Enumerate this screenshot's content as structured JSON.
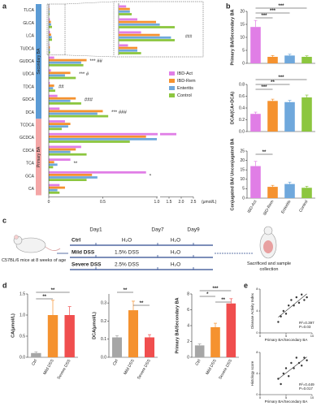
{
  "panel_labels": [
    "a",
    "b",
    "c",
    "d",
    "e"
  ],
  "chart_data": [
    {
      "type": "hbar",
      "categories": [
        "TLCA",
        "GLCA",
        "LCA",
        "TUDCA",
        "GUDCA",
        "UDCA",
        "TDCA",
        "GDCA",
        "DCA",
        "TCDCA",
        "GCDCA",
        "CDCA",
        "TCA",
        "GCA",
        "CA"
      ],
      "groups": [
        {
          "label": "Secondary BA",
          "color": "#5b9bd5"
        },
        {
          "label": "Primary BA",
          "color": "#f4a6a6"
        }
      ],
      "series": [
        {
          "name": "IBD-Act",
          "color": "#e07ee6",
          "values": [
            0.004,
            0.01,
            0.012,
            0.005,
            0.05,
            0.02,
            0.01,
            0.08,
            0.1,
            0.15,
            1.8,
            0.3,
            0.2,
            0.9,
            0.1
          ]
        },
        {
          "name": "IBD-Rem",
          "color": "#f5922f",
          "values": [
            0.006,
            0.02,
            0.022,
            0.01,
            0.35,
            0.2,
            0.05,
            0.25,
            0.5,
            0.2,
            0.9,
            0.25,
            0.05,
            0.4,
            0.15
          ]
        },
        {
          "name": "Enteritis",
          "color": "#6fa8dc",
          "values": [
            0.006,
            0.022,
            0.028,
            0.01,
            0.3,
            0.15,
            0.04,
            0.2,
            0.45,
            0.18,
            1.0,
            0.2,
            0.08,
            0.45,
            0.08
          ]
        },
        {
          "name": "Control",
          "color": "#8cc63f",
          "values": [
            0.007,
            0.03,
            0.03,
            0.012,
            0.32,
            0.25,
            0.06,
            0.3,
            0.55,
            0.12,
            0.75,
            0.35,
            0.04,
            0.35,
            0.1
          ]
        }
      ],
      "xlim": [
        0,
        2.5
      ],
      "axis_break": 1.0,
      "xticks": [
        0,
        0.5,
        {
          "value": 1,
          "label": "1.0"
        },
        1.5,
        {
          "value": 2,
          "label": "2.0"
        },
        2.5
      ],
      "xlabel": "(μmol/L)",
      "annotations": [
        "###",
        "*** ##",
        "*** #",
        "##",
        "###",
        "*** ###",
        "**",
        "*"
      ]
    },
    {
      "type": "bar",
      "ylabel": "Primary BA/Secondary BA",
      "values": [
        14,
        2.5,
        3,
        2.5
      ],
      "errors": [
        2.5,
        0.5,
        0.5,
        0.4
      ],
      "colors": [
        "#e07ee6",
        "#f5922f",
        "#6fa8dc",
        "#8cc63f"
      ],
      "ylim": [
        0,
        20
      ],
      "yticks": [
        0,
        5,
        10,
        15,
        20
      ],
      "annotations": [
        "***",
        "***",
        "***"
      ]
    },
    {
      "type": "bar",
      "ylabel": "DCA/(CA+DCA)",
      "values": [
        0.3,
        0.52,
        0.5,
        0.58
      ],
      "errors": [
        0.03,
        0.03,
        0.03,
        0.04
      ],
      "colors": [
        "#e07ee6",
        "#f5922f",
        "#6fa8dc",
        "#8cc63f"
      ],
      "ylim": [
        0,
        0.8
      ],
      "yticks": [
        {
          "value": 0,
          "label": "0.0"
        },
        0.2,
        0.4,
        0.6,
        0.8
      ],
      "annotations": [
        "***",
        "**",
        "***"
      ]
    },
    {
      "type": "bar",
      "ylabel": "Conjugated BA/ Unconjugated BA",
      "categories": [
        "IBD-Act",
        "IBD-Rem",
        "Enteritis",
        "Control"
      ],
      "values": [
        17,
        6,
        7.5,
        5.5
      ],
      "errors": [
        2.5,
        0.8,
        1,
        0.8
      ],
      "colors": [
        "#e07ee6",
        "#f5922f",
        "#6fa8dc",
        "#8cc63f"
      ],
      "ylim": [
        0,
        25
      ],
      "yticks": [
        0,
        5,
        10,
        15,
        20,
        25
      ],
      "annotations": [
        "**"
      ]
    },
    {
      "type": "bar",
      "ylabel": "CA(μmol/L)",
      "categories": [
        "Ctrl",
        "Mild DSS",
        "Severe DSS"
      ],
      "values": [
        0.1,
        1.0,
        1.0
      ],
      "errors": [
        0.03,
        0.35,
        0.2
      ],
      "colors": [
        "#a6a6a6",
        "#f5922f",
        "#f04e4e"
      ],
      "ylim": [
        0,
        1.5
      ],
      "yticks": [
        {
          "value": 0,
          "label": "0.0"
        },
        0.5,
        {
          "value": 1,
          "label": "1.0"
        },
        1.5
      ],
      "annotations": [
        "**",
        "**"
      ]
    },
    {
      "type": "bar",
      "ylabel": "DCA(μmol/L)",
      "categories": [
        "Ctrl",
        "Mild DSS",
        "Severe DSS"
      ],
      "values": [
        0.11,
        0.26,
        0.11
      ],
      "errors": [
        0.01,
        0.05,
        0.015
      ],
      "colors": [
        "#a6a6a6",
        "#f5922f",
        "#f04e4e"
      ],
      "ylim": [
        0,
        0.35
      ],
      "yticks": [
        {
          "value": 0,
          "label": "0.0"
        },
        0.1,
        0.2,
        0.3
      ],
      "annotations": [
        "**",
        "**"
      ]
    },
    {
      "type": "bar",
      "ylabel": "Primary BA/Secondary BA",
      "categories": [
        "Ctrl",
        "Mild DSS",
        "Severe DSS"
      ],
      "values": [
        1.5,
        3.8,
        6.8
      ],
      "errors": [
        0.2,
        0.5,
        0.6
      ],
      "colors": [
        "#a6a6a6",
        "#f5922f",
        "#f04e4e"
      ],
      "ylim": [
        0,
        8
      ],
      "yticks": [
        0,
        2,
        4,
        6,
        8
      ],
      "annotations": [
        "***",
        "*",
        "**"
      ]
    },
    {
      "type": "scatter",
      "xlabel": "Primary BA/Secondary BA",
      "ylabel": "Disease Activity Index",
      "x": [
        3.5,
        4,
        4.5,
        5,
        5.5,
        6,
        6.5,
        7,
        7.5,
        8,
        8.5,
        9
      ],
      "y": [
        2,
        3,
        4,
        3.5,
        5,
        6,
        5,
        6.5,
        5.5,
        7,
        6,
        6.5
      ],
      "xlim": [
        0,
        10
      ],
      "ylim": [
        0,
        8
      ],
      "xticks": [
        0,
        5,
        10
      ],
      "yticks": [
        0,
        4,
        8
      ],
      "annotations": [
        "R²=0.397",
        "P=0.03"
      ]
    },
    {
      "type": "scatter",
      "xlabel": "Primary BA/Secondary BA",
      "ylabel": "Histology score",
      "x": [
        3.5,
        4,
        4.5,
        5,
        5.5,
        6,
        6.5,
        7,
        7.5,
        8,
        8.5,
        9
      ],
      "y": [
        3,
        2,
        4,
        5,
        3.5,
        6,
        5,
        7,
        6,
        5.5,
        7,
        6.5
      ],
      "xlim": [
        0,
        10
      ],
      "ylim": [
        0,
        8
      ],
      "xticks": [
        0,
        5,
        10
      ],
      "yticks": [
        0,
        4,
        8
      ],
      "annotations": [
        "R²=0.449",
        "P=0.017"
      ]
    }
  ],
  "diagram": {
    "days": [
      "Day1",
      "Day7",
      "Day9"
    ],
    "groups": [
      {
        "name": "Ctrl",
        "phase1": "H₂O",
        "phase2": "H₂O"
      },
      {
        "name": "Mild DSS",
        "phase1": "1.5% DSS",
        "phase2": "H₂O"
      },
      {
        "name": "Severe DSS",
        "phase1": "2.5% DSS",
        "phase2": "H₂O"
      }
    ],
    "mouse_label": "C57BL/6 mice at 8 weeks of age",
    "outcome": "Sacrificed and sample collection"
  }
}
